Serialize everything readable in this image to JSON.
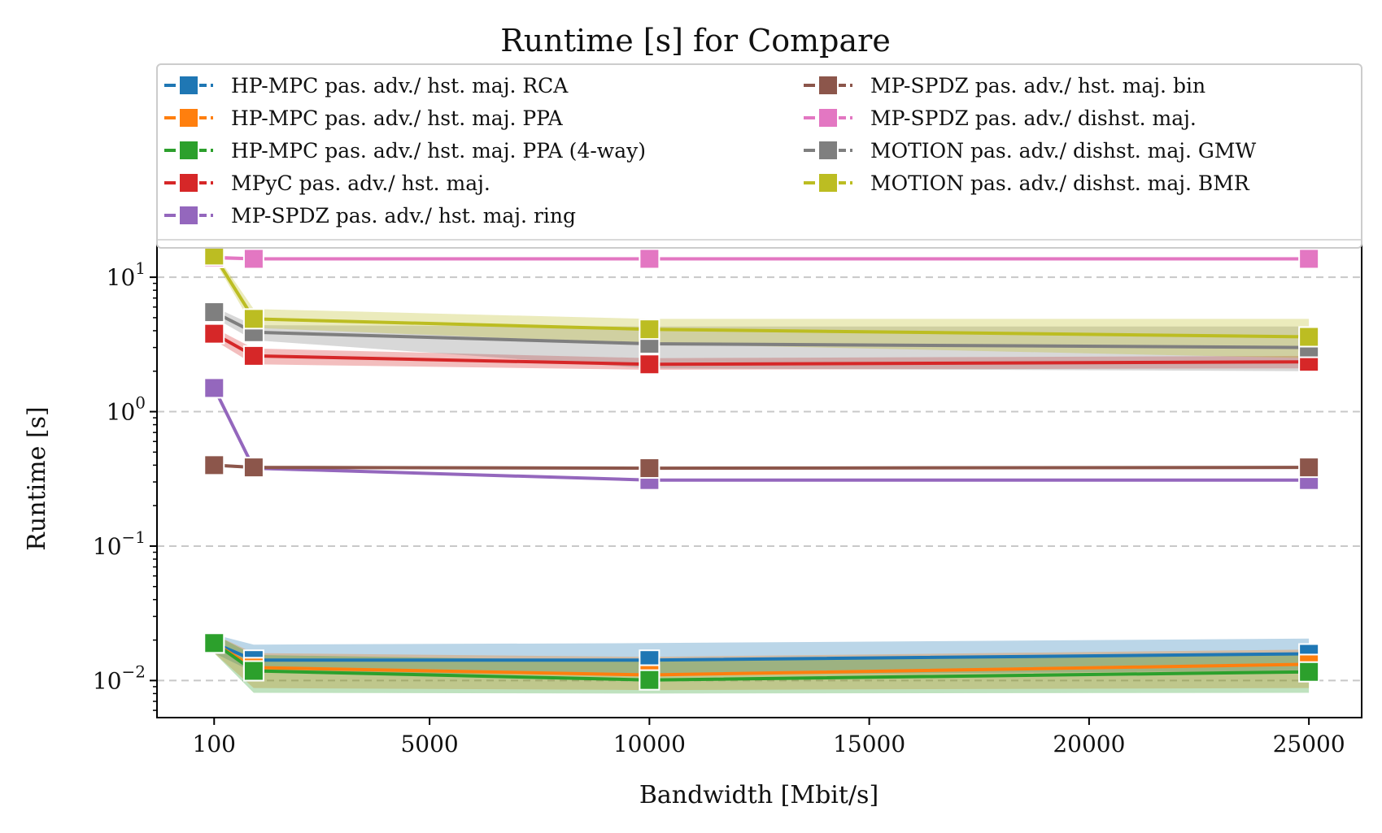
{
  "chart_data": {
    "type": "line",
    "title": "Runtime [s] for Compare",
    "xlabel": "Bandwidth [Mbit/s]",
    "ylabel": "Runtime [s]",
    "xscale": "linear",
    "yscale": "log",
    "xlim": [
      -1200,
      26200
    ],
    "ylim": [
      0.0053,
      19
    ],
    "xticks": [
      100,
      5000,
      10000,
      15000,
      20000,
      25000
    ],
    "xtick_labels": [
      "100",
      "5000",
      "10000",
      "15000",
      "20000",
      "25000"
    ],
    "yticks": [
      0.01,
      0.1,
      1,
      10
    ],
    "ytick_labels": [
      {
        "base": "10",
        "exp": "−2"
      },
      {
        "base": "10",
        "exp": "−1"
      },
      {
        "base": "10",
        "exp": "0"
      },
      {
        "base": "10",
        "exp": "1"
      }
    ],
    "grid": "horizontal dashed",
    "legend_position": "top",
    "x": [
      100,
      1000,
      10000,
      25000
    ],
    "series": [
      {
        "name": "HP-MPC pas. adv./ hst. maj. RCA",
        "color": "#1f77b4",
        "values": [
          0.019,
          0.0142,
          0.0142,
          0.0158
        ],
        "lower": [
          0.016,
          0.0115,
          0.011,
          0.0118
        ],
        "upper": [
          0.022,
          0.0185,
          0.019,
          0.0205
        ]
      },
      {
        "name": "HP-MPC pas. adv./ hst. maj. PPA",
        "color": "#ff7f0e",
        "values": [
          0.019,
          0.0125,
          0.011,
          0.0132
        ],
        "lower": [
          0.016,
          0.0088,
          0.0085,
          0.0088
        ],
        "upper": [
          0.022,
          0.016,
          0.015,
          0.017
        ]
      },
      {
        "name": "HP-MPC pas. adv./ hst. maj. PPA (4-way)",
        "color": "#2ca02c",
        "values": [
          0.019,
          0.0118,
          0.0101,
          0.0116
        ],
        "lower": [
          0.016,
          0.0081,
          0.008,
          0.0081
        ],
        "upper": [
          0.022,
          0.0155,
          0.014,
          0.0155
        ]
      },
      {
        "name": "MPyC pas. adv./ hst. maj.",
        "color": "#d62728",
        "values": [
          3.8,
          2.6,
          2.25,
          2.35
        ],
        "lower": [
          3.4,
          2.25,
          2.05,
          2.1
        ],
        "upper": [
          4.2,
          2.95,
          2.5,
          2.6
        ]
      },
      {
        "name": "MP-SPDZ pas. adv./ hst. maj. ring",
        "color": "#9467bd",
        "values": [
          1.5,
          0.38,
          0.31,
          0.31
        ],
        "lower": [
          1.45,
          0.37,
          0.305,
          0.305
        ],
        "upper": [
          1.55,
          0.39,
          0.315,
          0.315
        ]
      },
      {
        "name": "MP-SPDZ pas. adv./ hst. maj. bin",
        "color": "#8c564b",
        "values": [
          0.4,
          0.385,
          0.38,
          0.385
        ],
        "lower": [
          0.39,
          0.375,
          0.37,
          0.375
        ],
        "upper": [
          0.41,
          0.395,
          0.39,
          0.395
        ]
      },
      {
        "name": "MP-SPDZ pas. adv./ dishst. maj.",
        "color": "#e377c2",
        "values": [
          14.0,
          13.7,
          13.7,
          13.7
        ],
        "lower": [
          13.5,
          13.3,
          13.3,
          13.3
        ],
        "upper": [
          14.5,
          14.1,
          14.1,
          14.1
        ]
      },
      {
        "name": "MOTION pas. adv./ dishst. maj. GMW",
        "color": "#7f7f7f",
        "values": [
          5.5,
          3.9,
          3.2,
          3.0
        ],
        "lower": [
          5.0,
          3.4,
          2.1,
          2.0
        ],
        "upper": [
          6.0,
          4.4,
          4.3,
          4.3
        ]
      },
      {
        "name": "MOTION pas. adv./ dishst. maj. BMR",
        "color": "#bcbd22",
        "values": [
          14.5,
          4.9,
          4.1,
          3.6
        ],
        "lower": [
          13.5,
          4.2,
          3.2,
          2.5
        ],
        "upper": [
          15.5,
          5.8,
          4.9,
          4.9
        ]
      }
    ]
  }
}
